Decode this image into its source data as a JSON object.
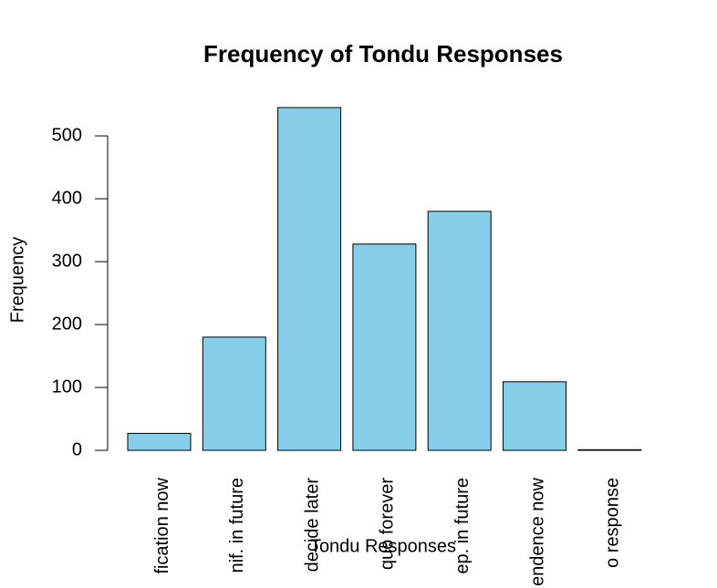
{
  "chart_data": {
    "type": "bar",
    "title": "Frequency of Tondu Responses",
    "x_label": "Tondu Responses",
    "y_label": "Frequency",
    "categories": [
      "fication now",
      "nif. in future",
      "decide later",
      "quo forever",
      "ep. in future",
      "endence now",
      "o response"
    ],
    "values": [
      27,
      180,
      545,
      328,
      380,
      109,
      1
    ],
    "color": "#87ceeb",
    "ylim": [
      0,
      545
    ],
    "yticks": [
      0,
      100,
      200,
      300,
      400,
      500
    ]
  }
}
